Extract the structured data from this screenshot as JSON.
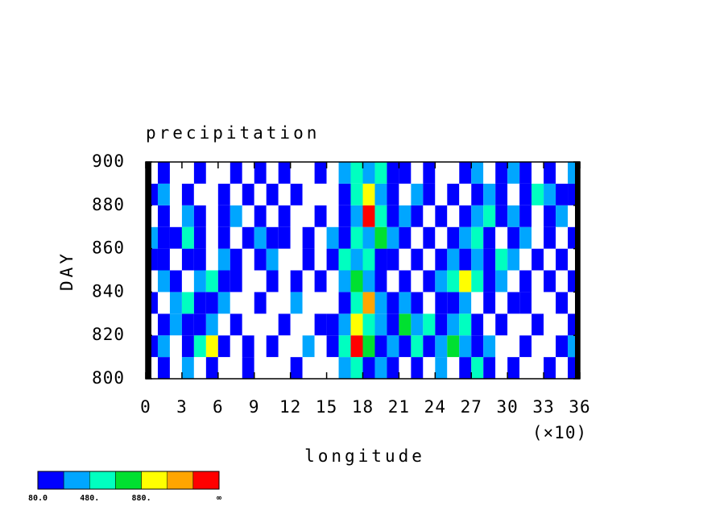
{
  "chart_data": {
    "type": "heatmap",
    "title": "precipitation",
    "xlabel": "longitude",
    "ylabel": "DAY",
    "x_multiplier": "(×10)",
    "xbins": [
      0,
      1,
      2,
      3,
      4,
      5,
      6,
      7,
      8,
      9,
      10,
      11,
      12,
      13,
      14,
      15,
      16,
      17,
      18,
      19,
      20,
      21,
      22,
      23,
      24,
      25,
      26,
      27,
      28,
      29,
      30,
      31,
      32,
      33,
      34,
      35,
      36
    ],
    "ybins": [
      800,
      810,
      820,
      830,
      840,
      850,
      860,
      870,
      880,
      890,
      900
    ],
    "z": [
      [
        0,
        150,
        0,
        350,
        0,
        150,
        0,
        0,
        150,
        0,
        0,
        0,
        150,
        0,
        0,
        0,
        350,
        550,
        150,
        350,
        150,
        0,
        150,
        0,
        350,
        0,
        150,
        550,
        150,
        0,
        150,
        0,
        0,
        150,
        0,
        150
      ],
      [
        150,
        350,
        0,
        150,
        550,
        950,
        150,
        0,
        150,
        0,
        150,
        0,
        0,
        350,
        0,
        150,
        550,
        1350,
        750,
        150,
        350,
        150,
        550,
        150,
        350,
        750,
        350,
        150,
        350,
        0,
        0,
        150,
        0,
        0,
        150,
        350
      ],
      [
        0,
        150,
        350,
        150,
        150,
        350,
        0,
        150,
        0,
        0,
        0,
        150,
        0,
        0,
        150,
        150,
        350,
        950,
        550,
        350,
        150,
        750,
        350,
        550,
        150,
        350,
        550,
        150,
        0,
        150,
        0,
        0,
        150,
        0,
        0,
        150
      ],
      [
        150,
        0,
        350,
        550,
        150,
        150,
        350,
        0,
        0,
        150,
        0,
        0,
        350,
        0,
        0,
        0,
        150,
        550,
        1150,
        350,
        150,
        350,
        150,
        0,
        150,
        150,
        350,
        0,
        150,
        0,
        150,
        150,
        0,
        0,
        150,
        0
      ],
      [
        0,
        350,
        150,
        0,
        350,
        550,
        150,
        150,
        0,
        0,
        150,
        0,
        150,
        0,
        150,
        0,
        350,
        750,
        350,
        150,
        0,
        150,
        0,
        150,
        350,
        550,
        950,
        550,
        150,
        350,
        0,
        150,
        0,
        150,
        0,
        150
      ],
      [
        150,
        150,
        0,
        150,
        150,
        0,
        350,
        150,
        0,
        150,
        350,
        0,
        0,
        150,
        0,
        150,
        550,
        350,
        550,
        150,
        150,
        0,
        150,
        0,
        150,
        350,
        150,
        350,
        150,
        550,
        350,
        0,
        150,
        0,
        150,
        0
      ],
      [
        350,
        150,
        150,
        550,
        150,
        0,
        150,
        0,
        150,
        350,
        150,
        150,
        0,
        150,
        0,
        350,
        150,
        550,
        350,
        750,
        350,
        150,
        0,
        150,
        0,
        150,
        350,
        550,
        150,
        0,
        150,
        350,
        0,
        150,
        0,
        150
      ],
      [
        0,
        150,
        0,
        350,
        150,
        0,
        150,
        350,
        0,
        150,
        0,
        150,
        0,
        0,
        150,
        0,
        150,
        350,
        1350,
        550,
        150,
        350,
        150,
        0,
        150,
        0,
        150,
        350,
        550,
        150,
        350,
        150,
        0,
        150,
        350,
        0
      ],
      [
        150,
        350,
        0,
        150,
        0,
        0,
        150,
        0,
        150,
        0,
        150,
        0,
        150,
        0,
        0,
        0,
        150,
        550,
        950,
        350,
        150,
        0,
        350,
        150,
        0,
        150,
        0,
        150,
        350,
        150,
        0,
        150,
        550,
        350,
        150,
        150
      ],
      [
        0,
        150,
        0,
        0,
        150,
        0,
        0,
        150,
        0,
        150,
        0,
        150,
        0,
        0,
        150,
        0,
        350,
        550,
        350,
        550,
        150,
        150,
        0,
        150,
        0,
        0,
        150,
        350,
        0,
        150,
        350,
        150,
        0,
        150,
        0,
        350
      ]
    ],
    "xlim": [
      0,
      36
    ],
    "ylim": [
      800,
      900
    ],
    "xticks": [
      0,
      3,
      6,
      9,
      12,
      15,
      18,
      21,
      24,
      27,
      30,
      33,
      36
    ],
    "yticks": [
      800,
      820,
      840,
      860,
      880,
      900
    ],
    "colorbar": {
      "colors": [
        "#0000ff",
        "#00a6ff",
        "#00ffc0",
        "#00e030",
        "#ffff00",
        "#ffa500",
        "#ff0000"
      ],
      "levels": [
        80,
        280,
        480,
        680,
        880,
        1080,
        1280
      ],
      "ticks": [
        {
          "value": 80,
          "label": "80.0"
        },
        {
          "value": 480,
          "label": "480."
        },
        {
          "value": 880,
          "label": "880."
        }
      ],
      "max_label": "∞"
    }
  }
}
